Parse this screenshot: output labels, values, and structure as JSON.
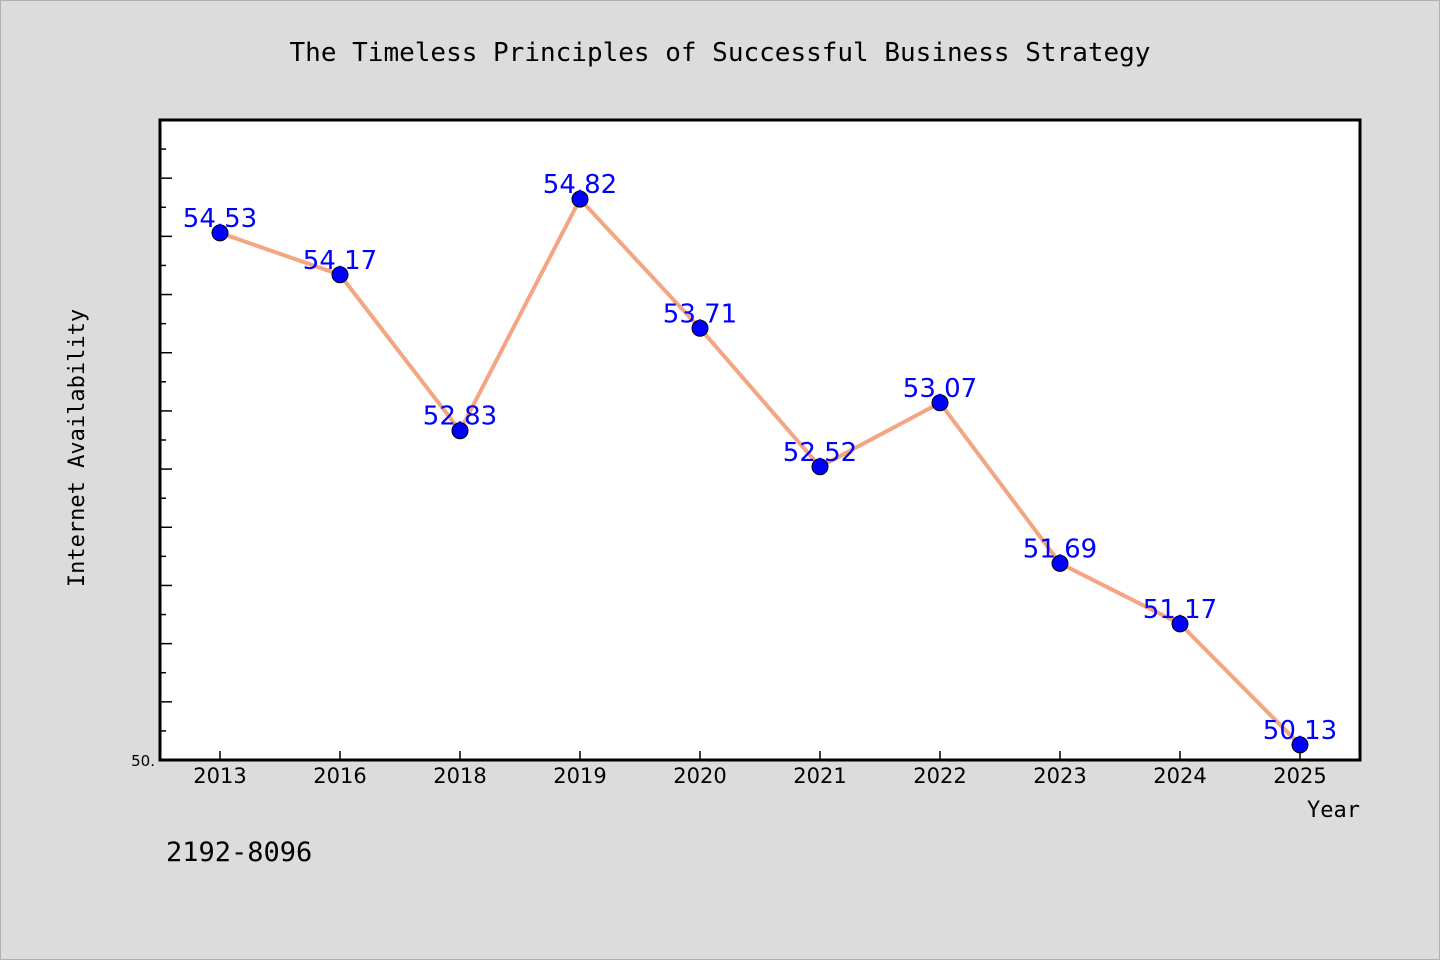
{
  "footer_code": "2192-8096",
  "chart_data": {
    "type": "line",
    "title": "The Timeless Principles of Successful Business Strategy",
    "xlabel": "Year",
    "ylabel": "Internet Availability",
    "categories": [
      "2013",
      "2016",
      "2018",
      "2019",
      "2020",
      "2021",
      "2022",
      "2023",
      "2024",
      "2025"
    ],
    "series": [
      {
        "values": [
          54.53,
          54.17,
          52.83,
          54.82,
          53.71,
          52.52,
          53.07,
          51.69,
          51.17,
          50.13
        ],
        "labels": [
          "54.53",
          "54.17",
          "52.83",
          "54.82",
          "53.71",
          "52.52",
          "53.07",
          "51.69",
          "51.17",
          "50.13"
        ]
      }
    ],
    "ylim": [
      50.0,
      55.5
    ],
    "y_tick_label": "50.",
    "grid": false,
    "legend": "none",
    "colors": {
      "line": "#f4a582",
      "marker": "#0000ff",
      "data_label": "#0000ff",
      "plot_background": "#ffffff",
      "figure_background": "#dcdcdc",
      "axes_frame": "#000000"
    }
  }
}
